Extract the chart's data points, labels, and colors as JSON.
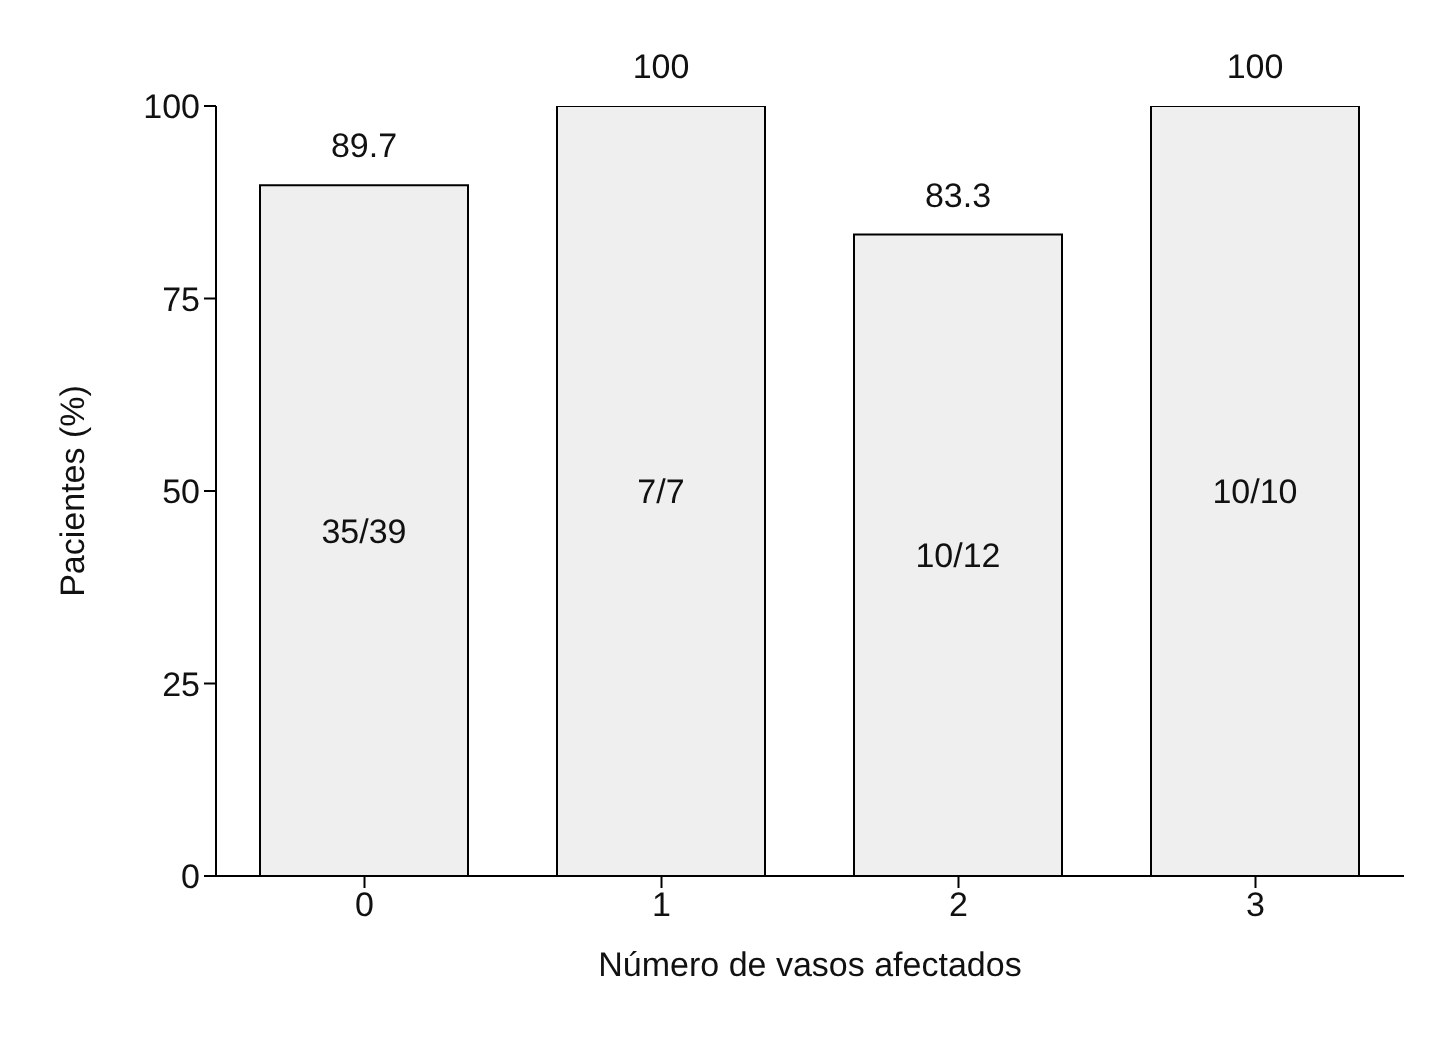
{
  "chart_data": {
    "type": "bar",
    "xlabel": "Número de vasos afectados",
    "ylabel": "Pacientes (%)",
    "categories": [
      "0",
      "1",
      "2",
      "3"
    ],
    "values": [
      89.7,
      100,
      83.3,
      100
    ],
    "color": "#efefef",
    "ylim": [
      0,
      100
    ],
    "yticks": [
      0,
      25,
      50,
      75,
      100
    ],
    "data_labels": true,
    "grid": false,
    "legend": false,
    "annotations": [
      "35/39",
      "7/7",
      "10/12",
      "10/10"
    ]
  }
}
